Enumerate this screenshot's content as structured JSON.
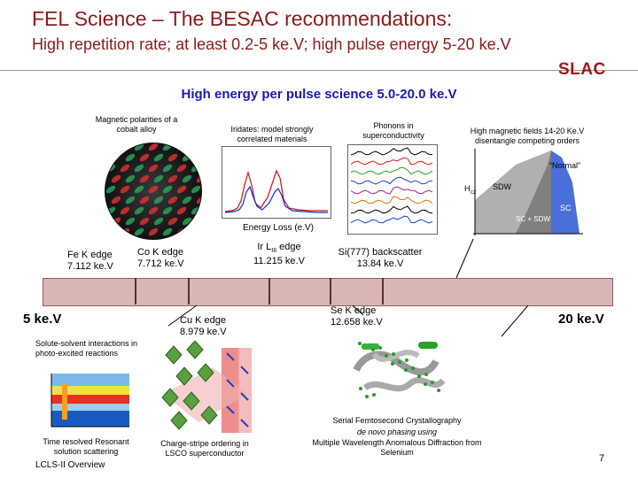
{
  "title": "FEL Science – The BESAC recommendations:",
  "subtitle": "High repetition rate; at least 0.2-5 ke.V; high pulse energy 5-20 ke.V",
  "logo_text": "SLAC",
  "heading": "High energy per pulse science 5.0-20.0 ke.V",
  "captions": {
    "magnetic": "Magnetic polarities of a cobalt alloy",
    "iridates": "Iridates: model strongly correlated materials",
    "phonons": "Phonons in superconductivity",
    "high_field": "High magnetic fields 14-20 Ke.V disentangle competing orders",
    "energy_loss": "Energy Loss (e.V)",
    "solute": "Solute-solvent interactions in photo-excited reactions",
    "time_resolved": "Time resolved Resonant solution scattering",
    "lcls": "LCLS-II Overview",
    "charge_stripe": "Charge-stripe ordering in LSCO superconductor",
    "serial": "Serial Femtosecond Crystallography",
    "de_novo": "de novo phasing using",
    "mwad": "Multiple Wavelength Anomalous Diffraction from Selenium"
  },
  "edges": {
    "fe": "Fe K edge 7.112 ke.V",
    "co": "Co K edge 7.712 ke.V",
    "ir_prefix": "Ir L",
    "ir_sub": "III",
    "ir_suffix": " edge",
    "ir_value": "11.215 ke.V",
    "si": "Si(777) backscatter 13.84 ke.V",
    "cu": "Cu K edge 8.979 ke.V",
    "se": "Se K edge 12.658 ke.V"
  },
  "range": {
    "low": "5 ke.V",
    "high": "20 ke.V"
  },
  "phase_labels": {
    "normal": "“Normal”",
    "sdw": "SDW",
    "sc": "SC",
    "sc_sdw": "SC + SDW",
    "hc2": "H",
    "hc2_sub": "c2"
  },
  "page_number": "7",
  "colors": {
    "title": "#8b1a1a",
    "heading": "#1a1ab0",
    "bar": "#d9b5b5"
  }
}
